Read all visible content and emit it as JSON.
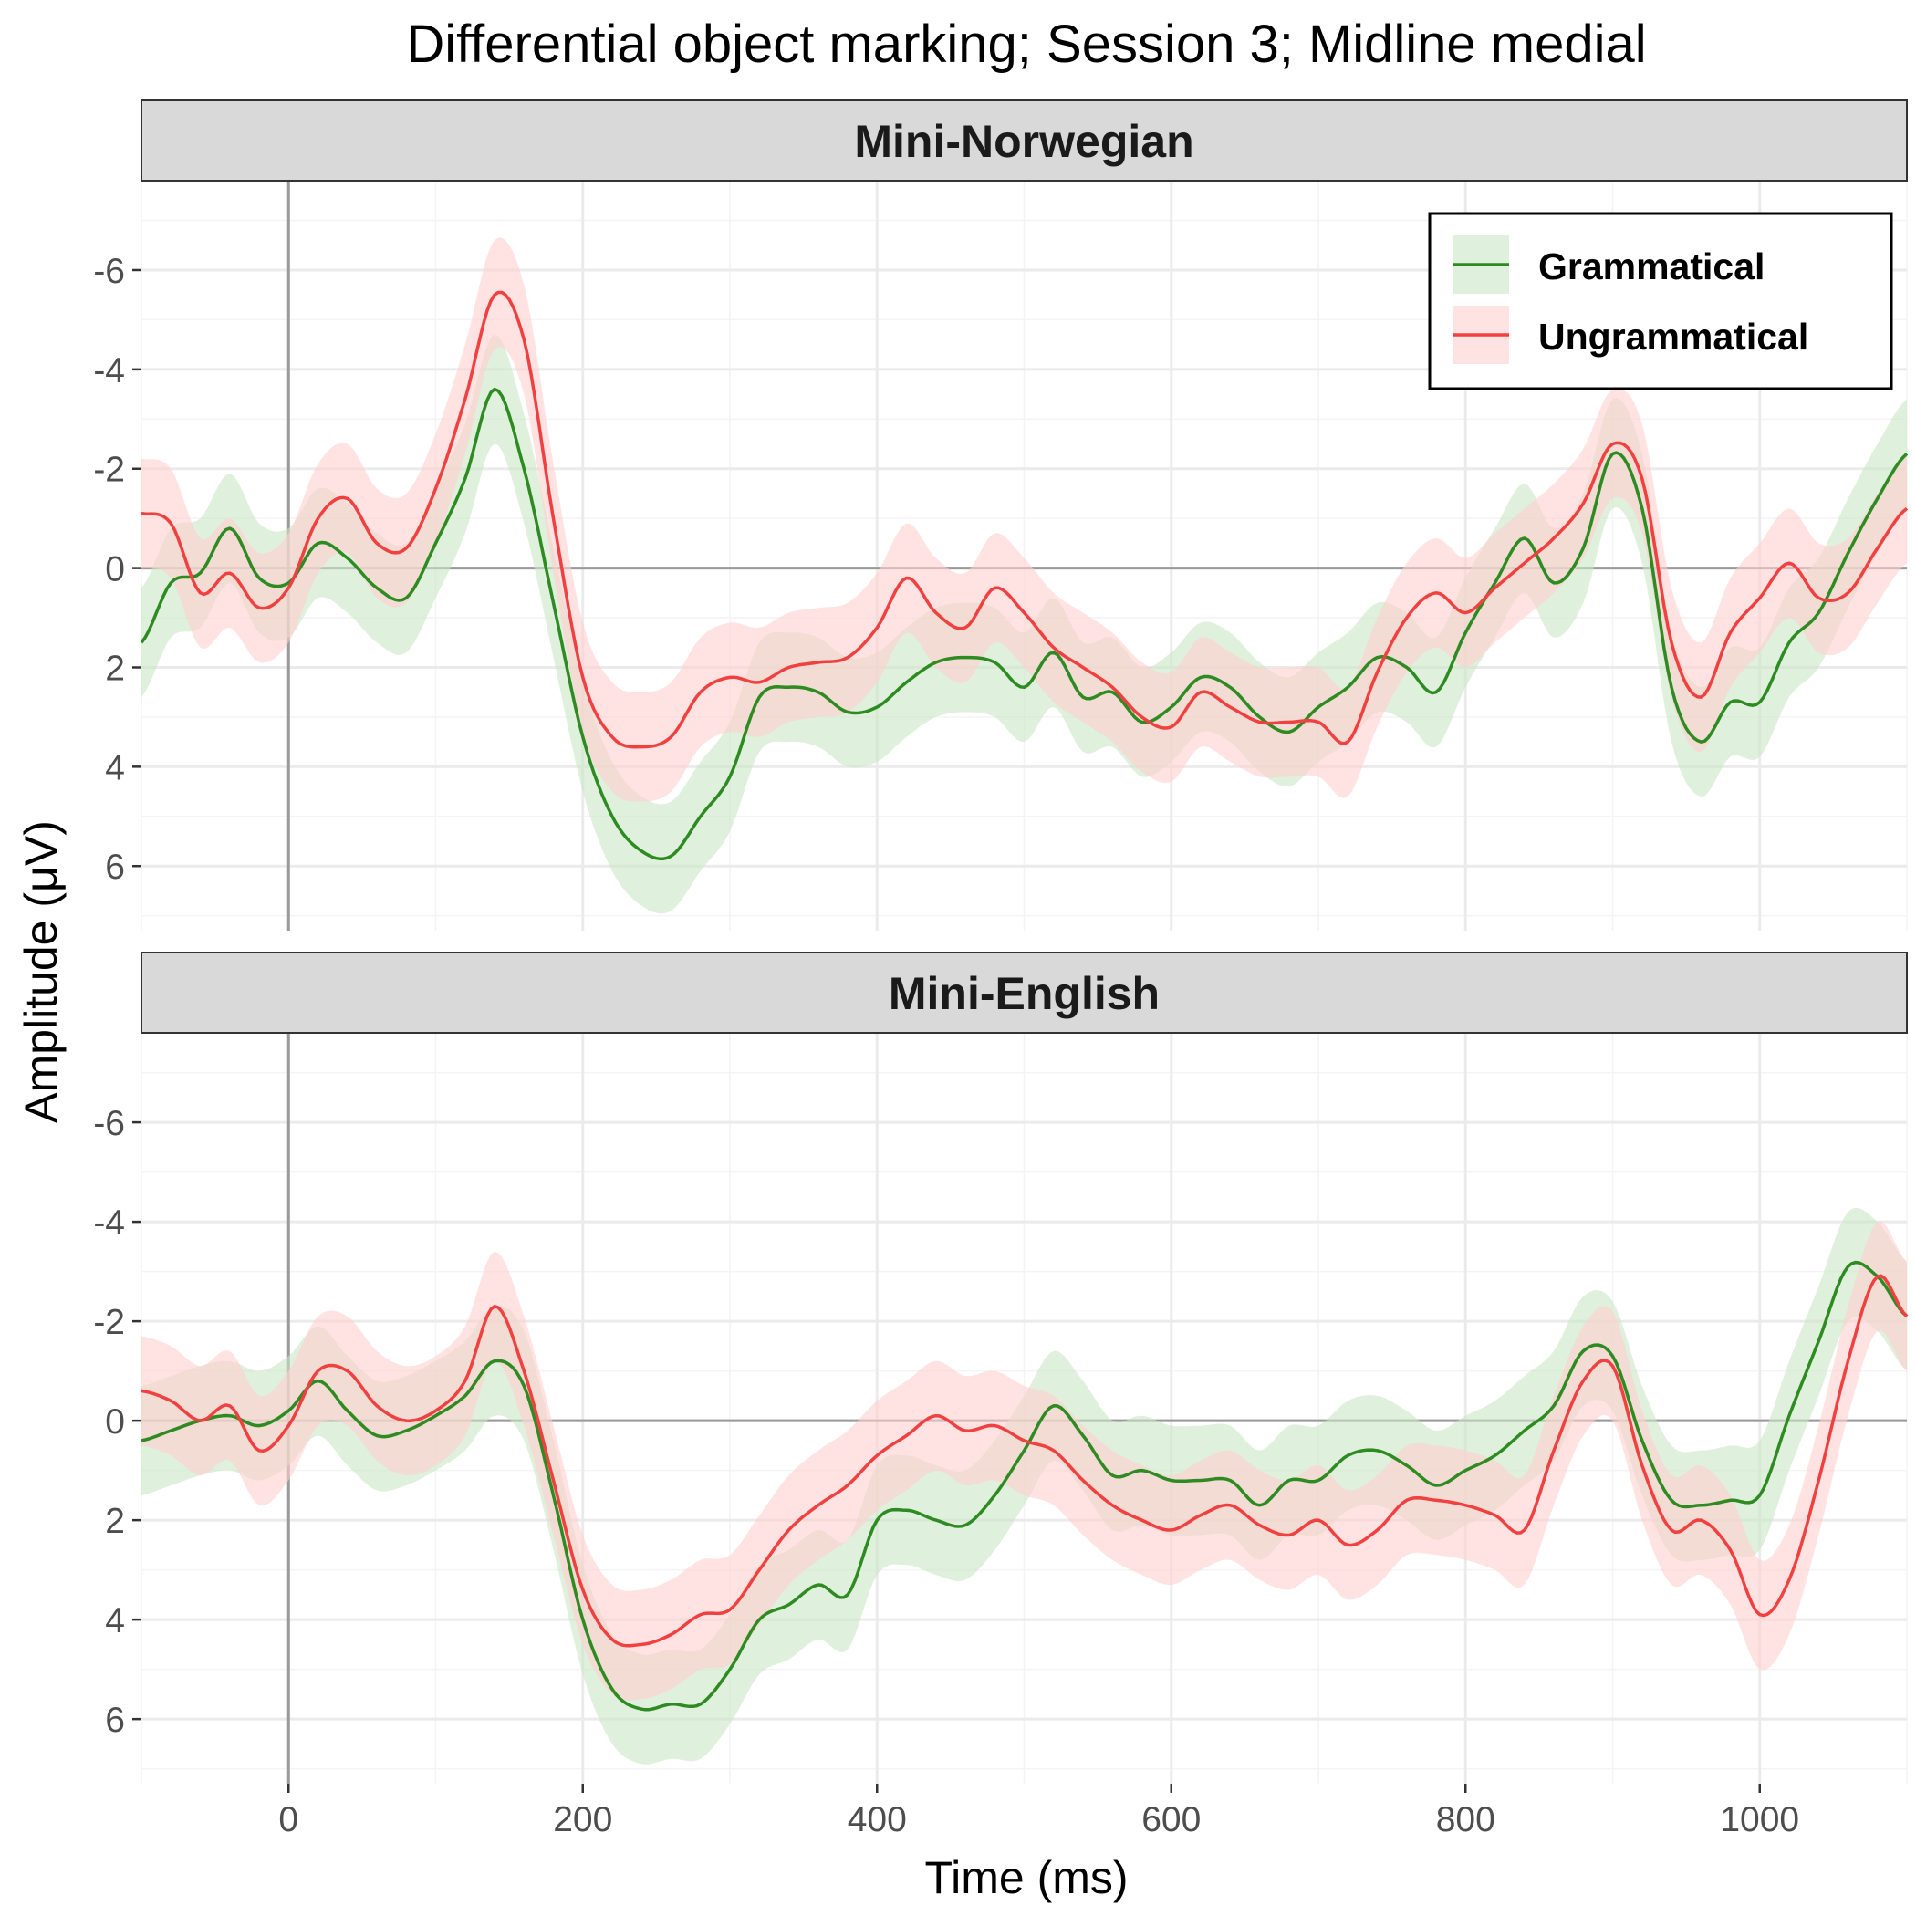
{
  "chart_data": {
    "type": "line",
    "title": "Differential object marking; Session 3; Midline medial",
    "xlabel": "Time (ms)",
    "ylabel": "Amplitude (μV)",
    "xlim": [
      -100,
      1100
    ],
    "ylim": [
      -7.8,
      7.3
    ],
    "y_reversed": true,
    "x_ticks": [
      0,
      200,
      400,
      600,
      800,
      1000
    ],
    "y_ticks": [
      -6,
      -4,
      -2,
      0,
      2,
      4,
      6
    ],
    "grid": true,
    "legend_position": "top-right",
    "colors": {
      "grammatical_line": "#2e8b22",
      "grammatical_band": "#c9e6c4",
      "ungrammatical_line": "#f04040",
      "ungrammatical_band": "#ffcfcf",
      "zero_line": "#9a9a9a",
      "strip_fill": "#d9d9d9",
      "grid_major": "#ebebeb",
      "grid_minor": "#f4f4f4"
    },
    "legend": [
      {
        "key": "grammatical",
        "label": "Grammatical"
      },
      {
        "key": "ungrammatical",
        "label": "Ungrammatical"
      }
    ],
    "band_halfwidth": 1.1,
    "panels": [
      {
        "label": "Mini-Norwegian",
        "x": [
          -100,
          -80,
          -60,
          -40,
          -20,
          0,
          20,
          40,
          60,
          80,
          100,
          120,
          140,
          160,
          180,
          200,
          220,
          240,
          260,
          280,
          300,
          320,
          340,
          360,
          380,
          400,
          420,
          440,
          460,
          480,
          500,
          520,
          540,
          560,
          580,
          600,
          620,
          640,
          660,
          680,
          700,
          720,
          740,
          760,
          780,
          800,
          820,
          840,
          860,
          880,
          900,
          920,
          940,
          960,
          980,
          1000,
          1020,
          1040,
          1060,
          1080,
          1100
        ],
        "series": [
          {
            "key": "grammatical",
            "values": [
              1.5,
              0.3,
              0.1,
              -0.8,
              0.2,
              0.3,
              -0.5,
              -0.2,
              0.4,
              0.6,
              -0.5,
              -1.8,
              -3.6,
              -2.0,
              0.7,
              3.4,
              5.0,
              5.7,
              5.8,
              5.0,
              4.2,
              2.6,
              2.4,
              2.5,
              2.9,
              2.8,
              2.3,
              1.9,
              1.8,
              1.9,
              2.4,
              1.7,
              2.6,
              2.5,
              3.1,
              2.8,
              2.2,
              2.4,
              3.0,
              3.3,
              2.8,
              2.4,
              1.8,
              2.0,
              2.5,
              1.3,
              0.3,
              -0.6,
              0.3,
              -0.4,
              -2.3,
              -1.2,
              2.4,
              3.5,
              2.7,
              2.7,
              1.5,
              0.9,
              -0.3,
              -1.4,
              -2.3
            ]
          },
          {
            "key": "ungrammatical",
            "values": [
              -1.1,
              -0.9,
              0.5,
              0.1,
              0.8,
              0.4,
              -1.0,
              -1.4,
              -0.5,
              -0.4,
              -1.6,
              -3.4,
              -5.5,
              -4.6,
              -1.0,
              2.2,
              3.4,
              3.6,
              3.4,
              2.5,
              2.2,
              2.3,
              2.0,
              1.9,
              1.8,
              1.2,
              0.2,
              0.9,
              1.2,
              0.4,
              0.9,
              1.6,
              2.0,
              2.4,
              3.0,
              3.2,
              2.5,
              2.8,
              3.1,
              3.1,
              3.1,
              3.5,
              2.1,
              1.0,
              0.5,
              0.9,
              0.4,
              -0.1,
              -0.6,
              -1.3,
              -2.5,
              -1.8,
              1.5,
              2.6,
              1.3,
              0.6,
              -0.1,
              0.6,
              0.5,
              -0.4,
              -1.2
            ]
          }
        ]
      },
      {
        "label": "Mini-English",
        "x": [
          -100,
          -80,
          -60,
          -40,
          -20,
          0,
          20,
          40,
          60,
          80,
          100,
          120,
          140,
          160,
          180,
          200,
          220,
          240,
          260,
          280,
          300,
          320,
          340,
          360,
          380,
          400,
          420,
          440,
          460,
          480,
          500,
          520,
          540,
          560,
          580,
          600,
          620,
          640,
          660,
          680,
          700,
          720,
          740,
          760,
          780,
          800,
          820,
          840,
          860,
          880,
          900,
          920,
          940,
          960,
          980,
          1000,
          1020,
          1040,
          1060,
          1080,
          1100
        ],
        "series": [
          {
            "key": "grammatical",
            "values": [
              0.4,
              0.2,
              0.0,
              -0.1,
              0.1,
              -0.2,
              -0.8,
              -0.2,
              0.3,
              0.2,
              -0.1,
              -0.5,
              -1.2,
              -0.7,
              1.5,
              4.0,
              5.4,
              5.8,
              5.7,
              5.7,
              5.0,
              4.0,
              3.7,
              3.3,
              3.5,
              2.0,
              1.8,
              2.0,
              2.1,
              1.5,
              0.6,
              -0.3,
              0.3,
              1.1,
              1.0,
              1.2,
              1.2,
              1.2,
              1.7,
              1.2,
              1.2,
              0.7,
              0.6,
              0.9,
              1.3,
              1.0,
              0.7,
              0.2,
              -0.3,
              -1.4,
              -1.3,
              0.4,
              1.6,
              1.7,
              1.6,
              1.5,
              -0.1,
              -1.6,
              -3.1,
              -2.9,
              -2.1
            ]
          },
          {
            "key": "ungrammatical",
            "values": [
              -0.6,
              -0.4,
              0.0,
              -0.3,
              0.6,
              0.1,
              -1.0,
              -1.0,
              -0.3,
              0.0,
              -0.2,
              -0.8,
              -2.3,
              -1.0,
              1.2,
              3.4,
              4.4,
              4.5,
              4.3,
              3.9,
              3.8,
              3.0,
              2.2,
              1.7,
              1.3,
              0.7,
              0.3,
              -0.1,
              0.2,
              0.1,
              0.4,
              0.6,
              1.2,
              1.7,
              2.0,
              2.2,
              1.9,
              1.7,
              2.1,
              2.3,
              2.0,
              2.5,
              2.2,
              1.6,
              1.6,
              1.7,
              1.9,
              2.2,
              0.6,
              -0.8,
              -1.1,
              0.9,
              2.2,
              2.0,
              2.6,
              3.9,
              3.2,
              1.2,
              -1.2,
              -2.9,
              -2.1
            ]
          }
        ]
      }
    ]
  }
}
